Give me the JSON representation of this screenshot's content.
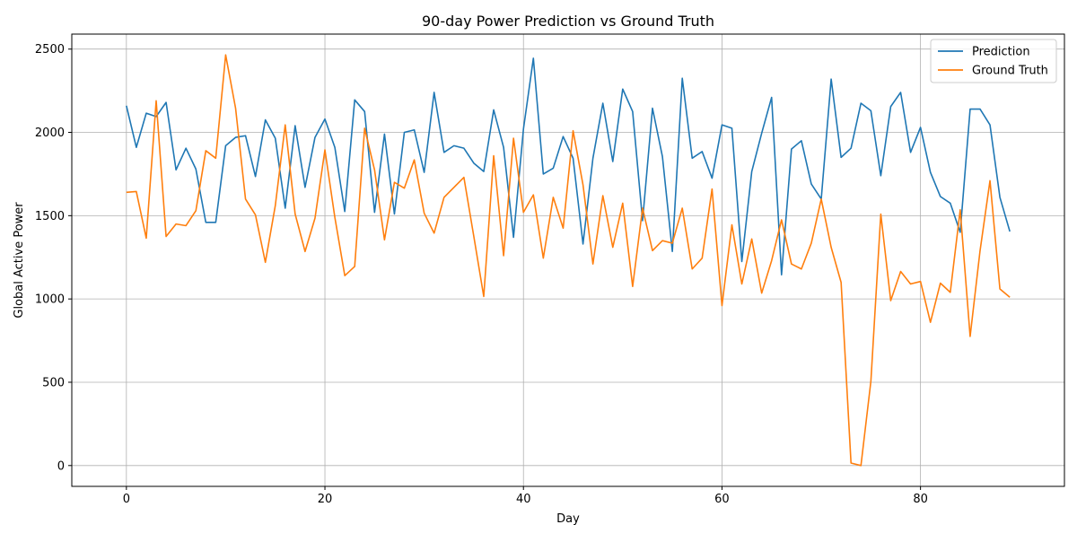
{
  "chart_data": {
    "type": "line",
    "title": "90-day Power Prediction vs Ground Truth",
    "xlabel": "Day",
    "ylabel": "Global Active Power",
    "xlim": [
      -5.5,
      94.5
    ],
    "ylim": [
      -125,
      2590
    ],
    "x_ticks": [
      0,
      20,
      40,
      60,
      80
    ],
    "y_ticks": [
      0,
      500,
      1000,
      1500,
      2000,
      2500
    ],
    "grid": true,
    "legend_position": "top-right",
    "x": [
      0,
      1,
      2,
      3,
      4,
      5,
      6,
      7,
      8,
      9,
      10,
      11,
      12,
      13,
      14,
      15,
      16,
      17,
      18,
      19,
      20,
      21,
      22,
      23,
      24,
      25,
      26,
      27,
      28,
      29,
      30,
      31,
      32,
      33,
      34,
      35,
      36,
      37,
      38,
      39,
      40,
      41,
      42,
      43,
      44,
      45,
      46,
      47,
      48,
      49,
      50,
      51,
      52,
      53,
      54,
      55,
      56,
      57,
      58,
      59,
      60,
      61,
      62,
      63,
      64,
      65,
      66,
      67,
      68,
      69,
      70,
      71,
      72,
      73,
      74,
      75,
      76,
      77,
      78,
      79,
      80,
      81,
      82,
      83,
      84,
      85,
      86,
      87,
      88,
      89
    ],
    "series": [
      {
        "name": "Prediction",
        "color": "#1f77b4",
        "values": [
          2160,
          1910,
          2115,
          2095,
          2180,
          1775,
          1905,
          1780,
          1460,
          1460,
          1920,
          1970,
          1980,
          1735,
          2075,
          1965,
          1545,
          2040,
          1670,
          1970,
          2080,
          1910,
          1525,
          2195,
          2125,
          1520,
          1990,
          1510,
          2000,
          2015,
          1760,
          2240,
          1880,
          1920,
          1905,
          1815,
          1765,
          2135,
          1910,
          1370,
          2020,
          2445,
          1750,
          1785,
          1975,
          1845,
          1330,
          1845,
          2175,
          1825,
          2260,
          2125,
          1470,
          2145,
          1855,
          1285,
          2325,
          1845,
          1885,
          1725,
          2045,
          2025,
          1225,
          1765,
          1995,
          2210,
          1145,
          1900,
          1950,
          1690,
          1600,
          2320,
          1850,
          1905,
          2175,
          2130,
          1740,
          2155,
          2240,
          1880,
          2030,
          1760,
          1615,
          1575,
          1400,
          2140,
          2140,
          2045,
          1610,
          1405
        ]
      },
      {
        "name": "Ground Truth",
        "color": "#ff7f0e",
        "values": [
          1640,
          1645,
          1365,
          2190,
          1375,
          1450,
          1440,
          1530,
          1890,
          1845,
          2465,
          2145,
          1600,
          1505,
          1220,
          1560,
          2045,
          1510,
          1285,
          1485,
          1895,
          1490,
          1140,
          1195,
          2025,
          1775,
          1355,
          1700,
          1665,
          1835,
          1515,
          1395,
          1610,
          1670,
          1730,
          1375,
          1015,
          1860,
          1260,
          1965,
          1520,
          1625,
          1245,
          1610,
          1425,
          2010,
          1685,
          1210,
          1620,
          1310,
          1575,
          1075,
          1545,
          1290,
          1350,
          1335,
          1545,
          1180,
          1245,
          1660,
          960,
          1445,
          1090,
          1360,
          1035,
          1230,
          1475,
          1210,
          1180,
          1335,
          1600,
          1310,
          1100,
          15,
          0,
          505,
          1510,
          990,
          1165,
          1090,
          1105,
          860,
          1095,
          1040,
          1535,
          775,
          1290,
          1710,
          1060,
          1010
        ]
      }
    ]
  }
}
